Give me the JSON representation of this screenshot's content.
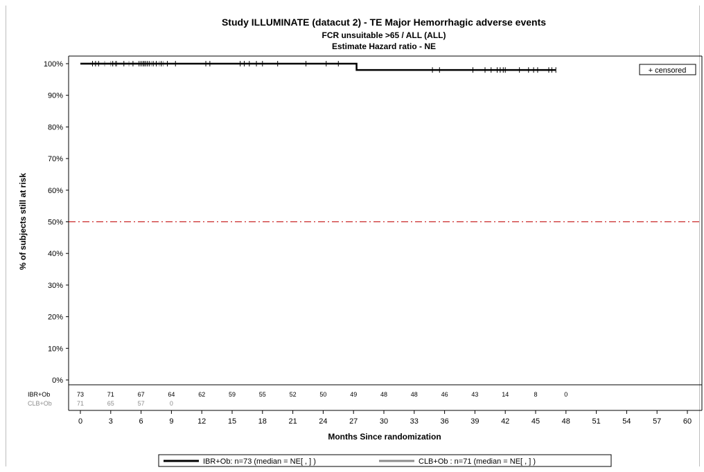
{
  "chart_data": {
    "type": "line",
    "title": "Study ILLUMINATE (datacut 2) - TE Major Hemorrhagic adverse events",
    "subtitle1": "FCR unsuitable >65  /  ALL (ALL)",
    "subtitle2": "Estimate Hazard ratio -  NE",
    "xlabel": "Months Since randomization",
    "ylabel": "% of subjects still at risk",
    "xlim": [
      0,
      60
    ],
    "ylim": [
      0,
      100
    ],
    "x_ticks": [
      "0",
      "3",
      "6",
      "9",
      "12",
      "15",
      "18",
      "21",
      "24",
      "27",
      "30",
      "33",
      "36",
      "39",
      "42",
      "45",
      "48",
      "51",
      "54",
      "57",
      "60"
    ],
    "y_ticks": [
      "0%",
      "10%",
      "20%",
      "30%",
      "40%",
      "50%",
      "60%",
      "70%",
      "80%",
      "90%",
      "100%"
    ],
    "reference_line": {
      "y": 50,
      "color": "#c00000",
      "style": "dash-dot"
    },
    "censored_label": "+  censored",
    "series": [
      {
        "name": "IBR+Ob",
        "color": "#000000",
        "steps": [
          [
            0,
            100
          ],
          [
            27.3,
            100
          ],
          [
            27.3,
            98
          ],
          [
            47,
            98
          ]
        ],
        "censored_x": [
          1.2,
          1.5,
          1.8,
          3.2,
          3.5,
          4.3,
          5.2,
          5.8,
          6.0,
          6.2,
          6.4,
          6.6,
          6.8,
          7.2,
          7.5,
          8.0,
          8.6,
          9.4,
          12.4,
          12.8,
          15.8,
          16.2,
          16.7,
          17.4,
          18.0,
          19.5,
          22.3,
          24.3,
          25.5,
          34.8,
          35.5,
          38.8,
          40.0,
          40.6,
          41.2,
          41.5,
          41.8,
          42.0,
          43.4,
          44.3,
          44.8,
          45.2,
          46.3,
          46.6,
          47.0
        ],
        "censored_y": 100,
        "censored_y_after": 98
      },
      {
        "name": "CLB+Ob",
        "color": "#8c8c8c",
        "steps": [
          [
            0,
            100
          ],
          [
            8.2,
            100
          ]
        ],
        "censored_x": [
          2.4,
          3.0,
          3.6,
          4.8,
          6.0,
          6.3,
          6.6,
          7.0,
          7.8,
          8.2
        ],
        "censored_y": 100
      }
    ],
    "risk_table": {
      "rows": [
        {
          "label": "IBR+Ob",
          "color": "#000000",
          "values": [
            "73",
            "71",
            "67",
            "64",
            "62",
            "59",
            "55",
            "52",
            "50",
            "49",
            "48",
            "48",
            "46",
            "43",
            "14",
            "8",
            "0"
          ]
        },
        {
          "label": "CLB+Ob",
          "color": "#8c8c8c",
          "values": [
            "71",
            "65",
            "57",
            "0"
          ]
        }
      ]
    },
    "legend": [
      {
        "text": "IBR+Ob: n=73 (median = NE[       ,       ]   )",
        "color": "#000000"
      },
      {
        "text": "CLB+Ob : n=71 (median = NE[       ,       ]   )",
        "color": "#8c8c8c"
      }
    ]
  }
}
